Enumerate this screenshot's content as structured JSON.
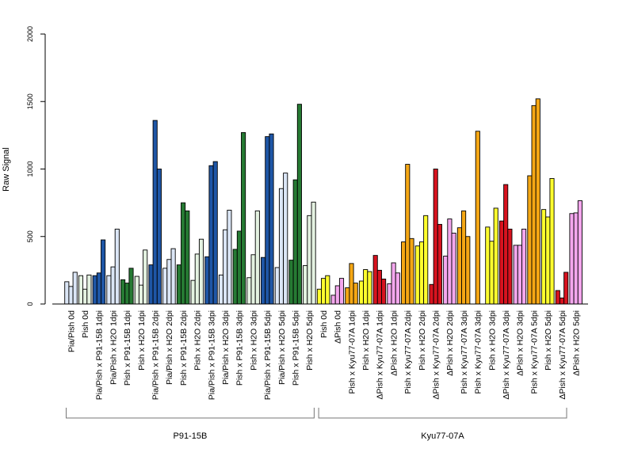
{
  "chart_data": {
    "type": "bar",
    "title": "",
    "xlabel": "",
    "ylabel": "Raw Signal",
    "ylim": [
      0,
      2000
    ],
    "yticks": [
      0,
      500,
      1000,
      1500,
      2000
    ],
    "grid": false,
    "legend": "none",
    "groups": [
      {
        "name": "P91-15B",
        "category_range": [
          0,
          17
        ]
      },
      {
        "name": "Kyu77-07A",
        "category_range": [
          18,
          35
        ]
      }
    ],
    "categories": [
      {
        "label": "Pia/Pish 0d",
        "color": "#dbe6f6",
        "values": [
          165,
          130,
          235
        ]
      },
      {
        "label": "Pish 0d",
        "color": "#e4f2e1",
        "values": [
          210,
          110,
          215
        ]
      },
      {
        "label": "Pia/Pish x P91-15B 1dpi",
        "color": "#1e56a6",
        "values": [
          210,
          230,
          475
        ]
      },
      {
        "label": "Pia/Pish x H2O 1dpi",
        "color": "#dbe6f6",
        "values": [
          210,
          275,
          555
        ]
      },
      {
        "label": "Pish x P91-15B 1dpi",
        "color": "#267a33",
        "values": [
          180,
          155,
          265
        ]
      },
      {
        "label": "Pish x H2O 1dpi",
        "color": "#e4f2e1",
        "values": [
          205,
          140,
          400
        ]
      },
      {
        "label": "Pia/Pish x P91-15B 2dpi",
        "color": "#1e56a6",
        "values": [
          290,
          1360,
          1000
        ]
      },
      {
        "label": "Pia/Pish x H2O 2dpi",
        "color": "#dbe6f6",
        "values": [
          265,
          330,
          410
        ]
      },
      {
        "label": "Pish x P91-15B 2dpi",
        "color": "#267a33",
        "values": [
          290,
          750,
          690
        ]
      },
      {
        "label": "Pish x H2O 2dpi",
        "color": "#e4f2e1",
        "values": [
          175,
          370,
          480
        ]
      },
      {
        "label": "Pia/Pish x P91-15B 3dpi",
        "color": "#1e56a6",
        "values": [
          350,
          1025,
          1055
        ]
      },
      {
        "label": "Pia/Pish x H2O 3dpi",
        "color": "#dbe6f6",
        "values": [
          215,
          550,
          695
        ]
      },
      {
        "label": "Pish x P91-15B 3dpi",
        "color": "#267a33",
        "values": [
          405,
          540,
          1270
        ]
      },
      {
        "label": "Pish x H2O 3dpi",
        "color": "#e4f2e1",
        "values": [
          195,
          365,
          690
        ]
      },
      {
        "label": "Pia/Pish x P91-15B 5dpi",
        "color": "#1e56a6",
        "values": [
          345,
          1240,
          1260
        ]
      },
      {
        "label": "Pia/Pish x H2O 5dpi",
        "color": "#dbe6f6",
        "values": [
          270,
          855,
          970
        ]
      },
      {
        "label": "Pish x P91-15B 5dpi",
        "color": "#267a33",
        "values": [
          325,
          920,
          1480
        ]
      },
      {
        "label": "Pish x H2O 5dpi",
        "color": "#e4f2e1",
        "values": [
          285,
          655,
          755
        ]
      },
      {
        "label": "Pish 0d",
        "color": "#ffff2e",
        "values": [
          110,
          190,
          210
        ]
      },
      {
        "label": "ΔPish 0d",
        "color": "#f4a7ee",
        "values": [
          65,
          135,
          190
        ]
      },
      {
        "label": "Pish x Kyu77-07A 1dpi",
        "color": "#f5a714",
        "values": [
          120,
          300,
          155
        ]
      },
      {
        "label": "Pish x H2O 1dpi",
        "color": "#ffff2e",
        "values": [
          170,
          255,
          240
        ]
      },
      {
        "label": "ΔPish x Kyu77-07A 1dpi",
        "color": "#d7131f",
        "values": [
          360,
          250,
          185
        ]
      },
      {
        "label": "ΔPish x H2O 1dpi",
        "color": "#f4a7ee",
        "values": [
          150,
          305,
          230
        ]
      },
      {
        "label": "Pish x Kyu77-07A 2dpi",
        "color": "#f5a714",
        "values": [
          460,
          1035,
          485
        ]
      },
      {
        "label": "Pish x H2O 2dpi",
        "color": "#ffff2e",
        "values": [
          430,
          460,
          655
        ]
      },
      {
        "label": "ΔPish x Kyu77-07A 2dpi",
        "color": "#d7131f",
        "values": [
          145,
          1000,
          590
        ]
      },
      {
        "label": "ΔPish x H2O 2dpi",
        "color": "#f4a7ee",
        "values": [
          355,
          630,
          525
        ]
      },
      {
        "label": "Pish x Kyu77-07A 3dpi",
        "color": "#f5a714",
        "values": [
          565,
          690,
          500
        ]
      },
      {
        "label": "Pish x Kyu77-07A 3dpi",
        "color": "#f5a714",
        "values": [
          1280
        ]
      },
      {
        "label": "Pish x H2O 3dpi",
        "color": "#ffff2e",
        "values": [
          570,
          465,
          710
        ]
      },
      {
        "label": "ΔPish x Kyu77-07A 3dpi",
        "color": "#d7131f",
        "values": [
          615,
          885,
          555
        ]
      },
      {
        "label": "ΔPish x H2O 3dpi",
        "color": "#f4a7ee",
        "values": [
          435,
          435,
          555
        ]
      },
      {
        "label": "Pish x Kyu77-07A 5dpi",
        "color": "#f5a714",
        "values": [
          950,
          1470,
          1520
        ]
      },
      {
        "label": "Pish x H2O 5dpi",
        "color": "#ffff2e",
        "values": [
          700,
          645,
          930
        ]
      },
      {
        "label": "ΔPish x Kyu77-07A 5dpi",
        "color": "#d7131f",
        "values": [
          100,
          45,
          235
        ]
      },
      {
        "label": "ΔPish x H2O 5dpi",
        "color": "#f4a7ee",
        "values": [
          670,
          675,
          765
        ]
      }
    ]
  }
}
